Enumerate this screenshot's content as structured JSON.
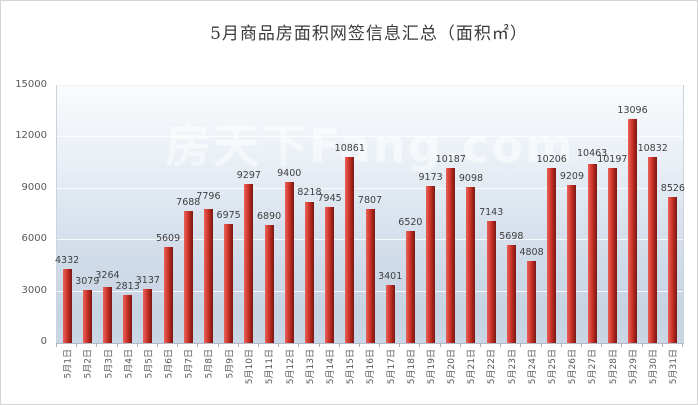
{
  "title": "5月商品房面积网签信息汇总（面积㎡）",
  "watermark": "房天下Fang.com",
  "colors": {
    "bar_light": "#e8625b",
    "bar_mid": "#c22d22",
    "bar_dark": "#7a1a13",
    "plot_bg_top": "#f9fbfd",
    "plot_bg_bottom": "#c6d3e3",
    "gridline": "#ffffff",
    "value_label_text": "#3f3f3f",
    "axis_text": "#595959",
    "title_text": "#3b3b3b"
  },
  "chart_data": {
    "type": "bar",
    "title": "5月商品房面积网签信息汇总（面积㎡）",
    "xlabel": "",
    "ylabel": "",
    "ylim": [
      0,
      15000
    ],
    "yticks": [
      0,
      3000,
      6000,
      9000,
      12000,
      15000
    ],
    "grid": true,
    "legend": false,
    "data_labels": true,
    "categories": [
      "5月1日",
      "5月2日",
      "5月3日",
      "5月4日",
      "5月5日",
      "5月6日",
      "5月7日",
      "5月8日",
      "5月9日",
      "5月10日",
      "5月11日",
      "5月12日",
      "5月13日",
      "5月14日",
      "5月15日",
      "5月16日",
      "5月17日",
      "5月18日",
      "5月19日",
      "5月20日",
      "5月21日",
      "5月22日",
      "5月23日",
      "5月24日",
      "5月25日",
      "5月26日",
      "5月27日",
      "5月28日",
      "5月29日",
      "5月30日",
      "5月31日"
    ],
    "values": [
      4332,
      3079,
      3264,
      2813,
      3137,
      5609,
      7688,
      7796,
      6975,
      9297,
      6890,
      9400,
      8218,
      7945,
      10861,
      7807,
      3401,
      6520,
      9173,
      10187,
      9098,
      7143,
      5698,
      4808,
      10206,
      9209,
      10463,
      10197,
      13096,
      10832,
      8526
    ]
  }
}
